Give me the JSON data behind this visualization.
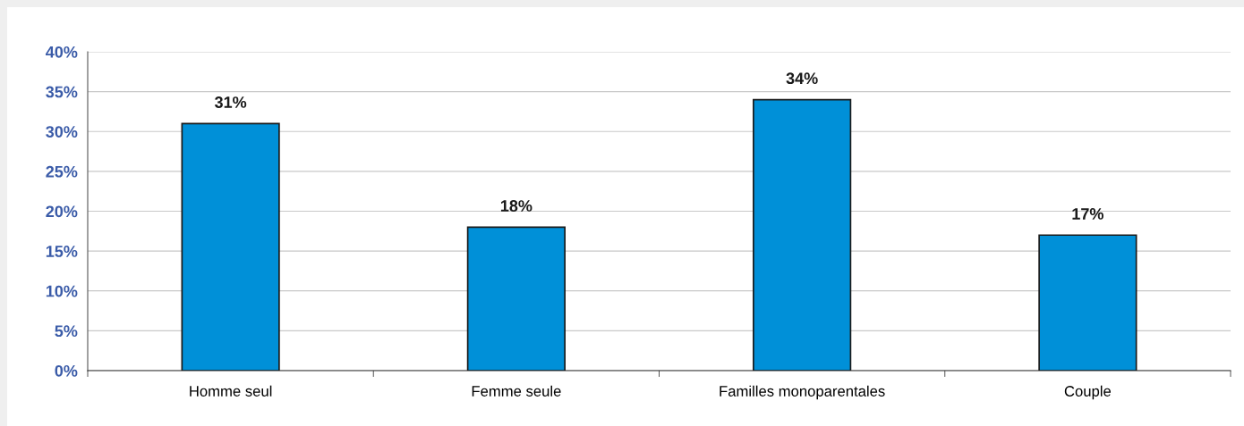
{
  "chart_data": {
    "type": "bar",
    "categories": [
      "Homme seul",
      "Femme seule",
      "Familles monoparentales",
      "Couple"
    ],
    "values": [
      31,
      18,
      34,
      17
    ],
    "value_labels": [
      "31%",
      "18%",
      "34%",
      "17%"
    ],
    "color": "#0090d8",
    "ylim": [
      0,
      40
    ],
    "yticks": [
      {
        "value": 0,
        "label": "0%"
      },
      {
        "value": 5,
        "label": "5%"
      },
      {
        "value": 10,
        "label": "10%"
      },
      {
        "value": 15,
        "label": "15%"
      },
      {
        "value": 20,
        "label": "20%"
      },
      {
        "value": 25,
        "label": "25%"
      },
      {
        "value": 30,
        "label": "30%"
      },
      {
        "value": 35,
        "label": "35%"
      },
      {
        "value": 40,
        "label": "40%"
      }
    ],
    "grid": "y"
  }
}
